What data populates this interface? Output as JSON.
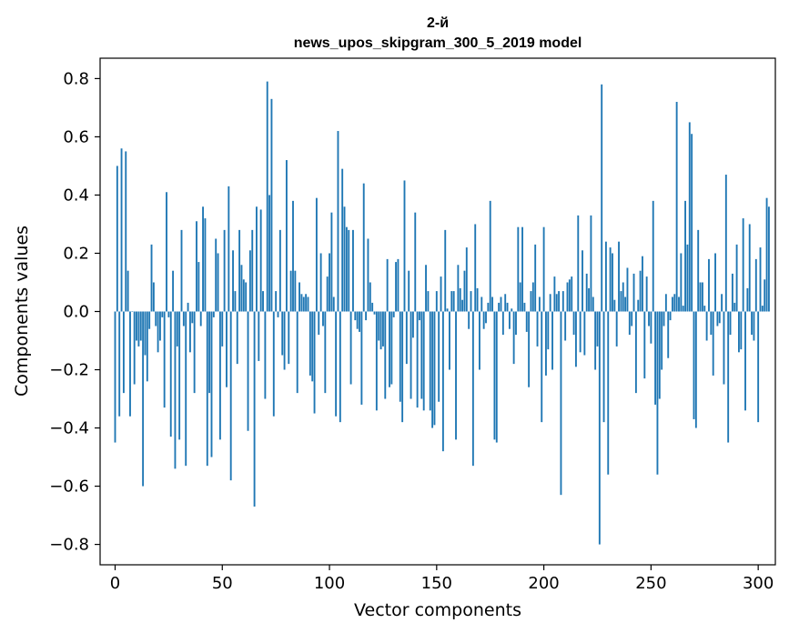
{
  "chart_data": {
    "type": "bar",
    "title": "2-й",
    "subtitle": "news_upos_skipgram_300_5_2019 model",
    "xlabel": "Vector components",
    "ylabel": "Components values",
    "xlim": [
      -7,
      308
    ],
    "ylim": [
      -0.87,
      0.87
    ],
    "xticks": [
      0,
      50,
      100,
      150,
      200,
      250,
      300
    ],
    "yticks": [
      -0.8,
      -0.6,
      -0.4,
      -0.2,
      0.0,
      0.2,
      0.4,
      0.6,
      0.8
    ],
    "ytick_labels": [
      "−0.8",
      "−0.6",
      "−0.4",
      "−0.2",
      "0.0",
      "0.2",
      "0.4",
      "0.6",
      "0.8"
    ],
    "bar_color": "#1f77b4",
    "series": [
      {
        "name": "components",
        "values": [
          -0.45,
          0.5,
          -0.36,
          0.56,
          -0.28,
          0.55,
          0.14,
          -0.36,
          0.0,
          -0.25,
          -0.1,
          -0.12,
          -0.1,
          -0.6,
          -0.15,
          -0.24,
          -0.06,
          0.23,
          0.1,
          -0.05,
          -0.14,
          -0.1,
          -0.02,
          -0.33,
          0.41,
          -0.02,
          -0.43,
          0.14,
          -0.54,
          -0.12,
          -0.44,
          0.28,
          -0.05,
          -0.53,
          0.03,
          -0.14,
          -0.04,
          -0.28,
          0.31,
          0.17,
          -0.05,
          0.36,
          0.32,
          -0.53,
          -0.28,
          -0.5,
          -0.02,
          0.25,
          0.2,
          -0.44,
          -0.12,
          0.28,
          -0.26,
          0.43,
          -0.58,
          0.21,
          0.07,
          -0.18,
          0.28,
          0.16,
          0.11,
          0.1,
          -0.41,
          0.21,
          0.28,
          -0.67,
          0.36,
          -0.17,
          0.35,
          0.07,
          -0.3,
          0.79,
          0.4,
          0.73,
          -0.36,
          0.07,
          -0.02,
          0.28,
          -0.15,
          -0.2,
          0.52,
          -0.18,
          0.14,
          0.38,
          0.14,
          -0.28,
          0.1,
          0.06,
          0.05,
          0.06,
          0.05,
          -0.22,
          -0.24,
          -0.35,
          0.39,
          -0.08,
          0.2,
          -0.05,
          -0.28,
          0.12,
          0.2,
          0.34,
          0.05,
          -0.36,
          0.62,
          -0.38,
          0.49,
          0.36,
          0.29,
          0.28,
          -0.25,
          0.28,
          -0.03,
          -0.06,
          -0.07,
          -0.32,
          0.44,
          -0.03,
          0.25,
          0.1,
          0.03,
          -0.01,
          -0.34,
          -0.1,
          -0.13,
          -0.12,
          -0.3,
          0.18,
          -0.26,
          -0.25,
          -0.02,
          0.17,
          0.18,
          -0.31,
          -0.38,
          0.45,
          -0.18,
          0.14,
          -0.3,
          -0.09,
          0.34,
          -0.33,
          -0.03,
          -0.3,
          -0.34,
          0.16,
          0.07,
          -0.34,
          -0.4,
          -0.39,
          0.07,
          -0.31,
          0.12,
          -0.48,
          0.28,
          0.01,
          -0.2,
          0.07,
          0.07,
          -0.44,
          0.16,
          0.08,
          0.04,
          0.14,
          0.22,
          -0.06,
          0.07,
          -0.53,
          0.3,
          0.08,
          -0.2,
          0.05,
          -0.06,
          -0.04,
          0.03,
          0.38,
          0.05,
          -0.44,
          -0.45,
          0.03,
          0.05,
          -0.08,
          0.06,
          0.03,
          -0.06,
          0.01,
          -0.18,
          -0.08,
          0.29,
          0.1,
          0.29,
          0.03,
          -0.07,
          -0.26,
          0.07,
          0.1,
          0.23,
          -0.12,
          0.05,
          -0.38,
          0.29,
          -0.22,
          -0.13,
          0.06,
          -0.2,
          0.12,
          0.06,
          0.07,
          -0.63,
          0.07,
          -0.1,
          0.1,
          0.11,
          0.12,
          -0.08,
          -0.19,
          0.33,
          -0.14,
          0.21,
          -0.15,
          0.13,
          0.08,
          0.33,
          0.05,
          -0.2,
          -0.12,
          -0.8,
          0.78,
          -0.38,
          0.24,
          -0.56,
          0.22,
          0.2,
          0.04,
          -0.12,
          0.24,
          0.07,
          0.1,
          0.05,
          0.15,
          -0.08,
          -0.05,
          0.13,
          -0.28,
          0.04,
          0.14,
          0.19,
          -0.23,
          0.12,
          -0.05,
          -0.11,
          0.38,
          -0.32,
          -0.56,
          -0.3,
          -0.2,
          -0.05,
          0.06,
          -0.16,
          -0.03,
          0.05,
          0.06,
          0.72,
          0.05,
          0.2,
          0.02,
          0.38,
          0.23,
          0.65,
          0.61,
          -0.37,
          -0.4,
          0.28,
          0.1,
          0.1,
          0.02,
          -0.1,
          0.18,
          -0.08,
          -0.22,
          0.2,
          -0.05,
          -0.04,
          0.06,
          -0.25,
          0.47,
          -0.45,
          -0.08,
          0.13,
          0.03,
          0.23,
          -0.14,
          -0.13,
          0.32,
          -0.34,
          0.08,
          0.3,
          -0.08,
          -0.1,
          0.18,
          -0.38,
          0.22,
          0.02,
          0.11,
          0.39,
          0.36
        ]
      }
    ]
  }
}
